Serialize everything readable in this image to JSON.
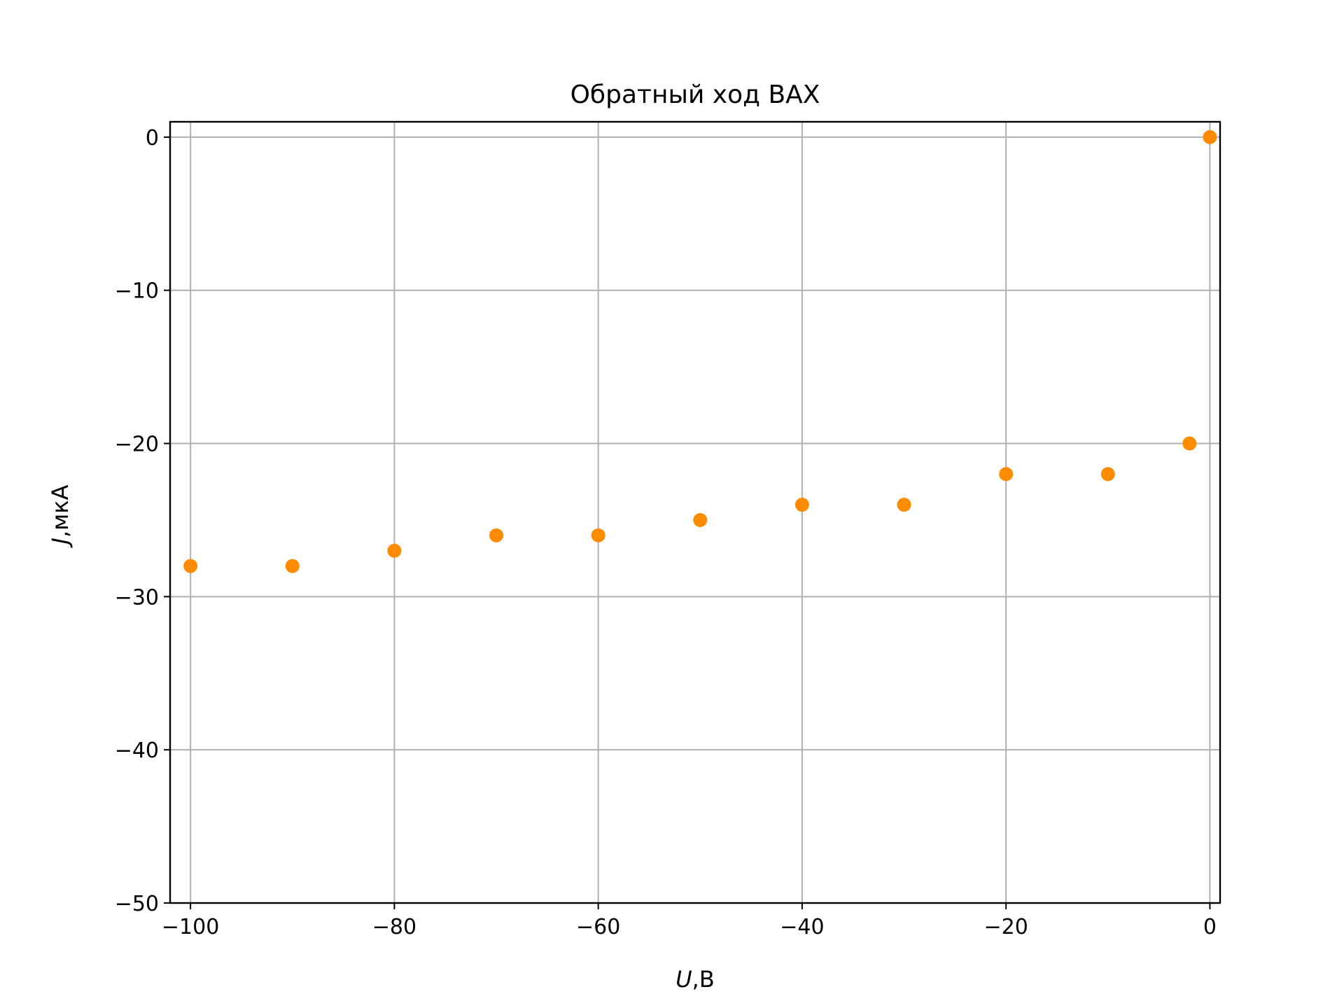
{
  "chart_data": {
    "type": "scatter",
    "title": "Обратный ход ВАХ",
    "xlabel": {
      "var": "U",
      "unit": ",В"
    },
    "ylabel": {
      "var": "J",
      "unit": ",мкА"
    },
    "xlim": [
      -102,
      1
    ],
    "ylim": [
      -50,
      1
    ],
    "xticks": [
      -100,
      -80,
      -60,
      -40,
      -20,
      0
    ],
    "yticks": [
      -50,
      -40,
      -30,
      -20,
      -10,
      0
    ],
    "xtick_labels": [
      "−100",
      "−80",
      "−60",
      "−40",
      "−20",
      "0"
    ],
    "ytick_labels": [
      "−50",
      "−40",
      "−30",
      "−20",
      "−10",
      "0"
    ],
    "grid": true,
    "colors": {
      "points": "#ff8c00",
      "grid": "#b0b0b0",
      "axes": "#000000"
    },
    "series": [
      {
        "x": [
          -100,
          -90,
          -80,
          -70,
          -60,
          -50,
          -40,
          -30,
          -20,
          -10,
          -2,
          0
        ],
        "y": [
          -28,
          -28,
          -27,
          -26,
          -26,
          -25,
          -24,
          -24,
          -22,
          -22,
          -20,
          0
        ]
      }
    ]
  }
}
